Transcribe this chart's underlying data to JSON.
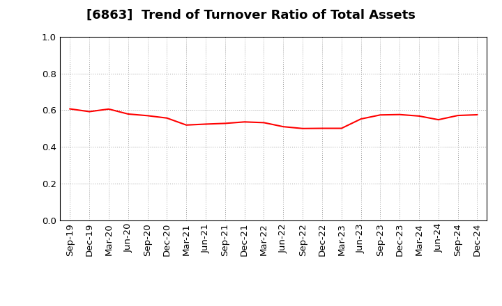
{
  "title": "[6863]  Trend of Turnover Ratio of Total Assets",
  "line_color": "#FF0000",
  "line_width": 1.5,
  "background_color": "#FFFFFF",
  "grid_color": "#999999",
  "ylim": [
    0.0,
    1.0
  ],
  "yticks": [
    0.0,
    0.2,
    0.4,
    0.6,
    0.8,
    1.0
  ],
  "x_labels": [
    "Sep-19",
    "Dec-19",
    "Mar-20",
    "Jun-20",
    "Sep-20",
    "Dec-20",
    "Mar-21",
    "Jun-21",
    "Sep-21",
    "Dec-21",
    "Mar-22",
    "Jun-22",
    "Sep-22",
    "Dec-22",
    "Mar-23",
    "Jun-23",
    "Sep-23",
    "Dec-23",
    "Mar-24",
    "Jun-24",
    "Sep-24",
    "Dec-24"
  ],
  "values": [
    0.607,
    0.592,
    0.606,
    0.579,
    0.57,
    0.557,
    0.519,
    0.524,
    0.528,
    0.536,
    0.532,
    0.51,
    0.5,
    0.501,
    0.501,
    0.552,
    0.574,
    0.576,
    0.568,
    0.548,
    0.571,
    0.575
  ],
  "title_fontsize": 13,
  "tick_fontsize": 9.5
}
